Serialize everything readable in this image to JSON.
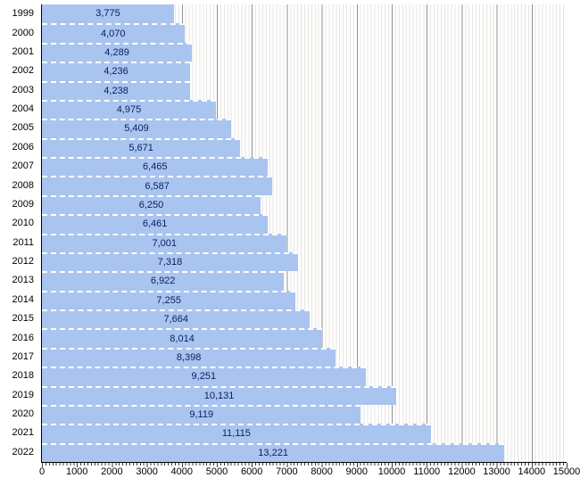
{
  "chart_data": {
    "type": "bar",
    "orientation": "horizontal",
    "title": "",
    "xlabel": "",
    "ylabel": "",
    "categories": [
      "1999",
      "2000",
      "2001",
      "2002",
      "2003",
      "2004",
      "2005",
      "2006",
      "2007",
      "2008",
      "2009",
      "2010",
      "2011",
      "2012",
      "2013",
      "2014",
      "2015",
      "2016",
      "2017",
      "2018",
      "2019",
      "2020",
      "2021",
      "2022"
    ],
    "values": [
      3775,
      4070,
      4289,
      4236,
      4238,
      4975,
      5409,
      5671,
      6465,
      6587,
      6250,
      6461,
      7001,
      7318,
      6922,
      7255,
      7664,
      8014,
      8398,
      9251,
      10131,
      9119,
      11115,
      13221
    ],
    "value_labels": [
      "3,775",
      "4,070",
      "4,289",
      "4,236",
      "4,238",
      "4,975",
      "5,409",
      "5,671",
      "6,465",
      "6,587",
      "6,250",
      "6,461",
      "7,001",
      "7,318",
      "6,922",
      "7,255",
      "7,664",
      "8,014",
      "8,398",
      "9,251",
      "10,131",
      "9,119",
      "11,115",
      "13,221"
    ],
    "xlim": [
      0,
      15000
    ],
    "x_ticks": [
      0,
      1000,
      2000,
      3000,
      4000,
      5000,
      6000,
      7000,
      8000,
      9000,
      10000,
      11000,
      12000,
      13000,
      14000,
      15000
    ],
    "x_tick_labels": [
      "0",
      "1000",
      "2000",
      "3000",
      "4000",
      "5000",
      "6000",
      "7000",
      "8000",
      "9000",
      "10000",
      "11000",
      "12000",
      "13000",
      "14000",
      "15000"
    ],
    "x_minor_tick_step": 100,
    "grid": true,
    "legend": false,
    "colors": {
      "background": "#ffffff",
      "bar_fill": "#aac4f0",
      "bar_label_text": "#0b2161",
      "separator": "#ffffff",
      "major_gridline": "#8f8f8f",
      "minor_gridline": "#e8e4e0",
      "axis_line": "#000000",
      "axis_text": "#000000",
      "tick_color": "#3a3a3a"
    }
  }
}
